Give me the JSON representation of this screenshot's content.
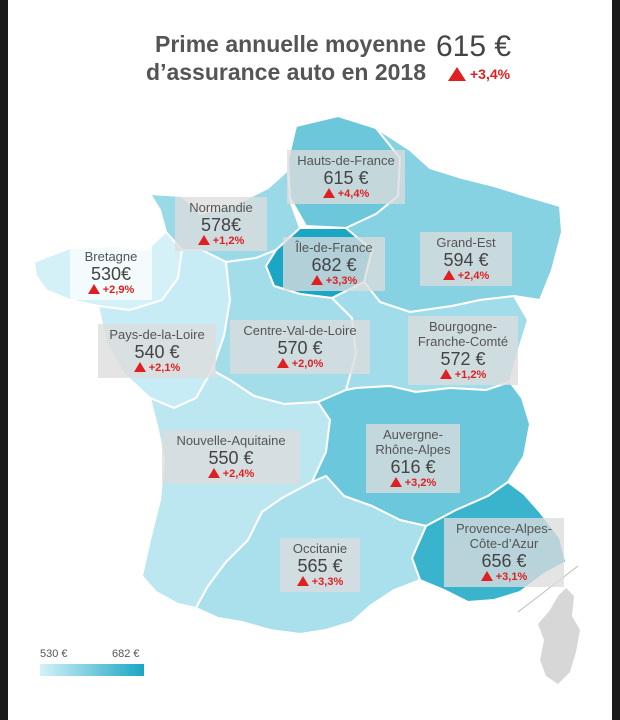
{
  "header": {
    "title_line1": "Prime annuelle moyenne",
    "title_line2": "d’assurance auto en 2018",
    "national_price": "615 €",
    "national_change": "+3,4%"
  },
  "colors": {
    "increase": "#e02020",
    "scale_min": "#d4f1f8",
    "scale_max": "#1aa6c4"
  },
  "regions": [
    {
      "id": "hauts-de-france",
      "name": "Hauts-de-France",
      "price": "615 €",
      "change": "+4,4%",
      "value": 615
    },
    {
      "id": "normandie",
      "name": "Normandie",
      "price": "578€",
      "change": "+1,2%",
      "value": 578
    },
    {
      "id": "ile-de-france",
      "name": "Île-de-France",
      "price": "682 €",
      "change": "+3,3%",
      "value": 682
    },
    {
      "id": "grand-est",
      "name": "Grand-Est",
      "price": "594 €",
      "change": "+2,4%",
      "value": 594
    },
    {
      "id": "bretagne",
      "name": "Bretagne",
      "price": "530€",
      "change": "+2,9%",
      "value": 530
    },
    {
      "id": "pays-de-la-loire",
      "name": "Pays-de-la-Loire",
      "price": "540 €",
      "change": "+2,1%",
      "value": 540
    },
    {
      "id": "centre-val-de-loire",
      "name": "Centre-Val-de-Loire",
      "price": "570 €",
      "change": "+2,0%",
      "value": 570
    },
    {
      "id": "bourgogne-franche-comte",
      "name_line1": "Bourgogne-",
      "name_line2": "Franche-Comté",
      "price": "572 €",
      "change": "+1,2%",
      "value": 572
    },
    {
      "id": "nouvelle-aquitaine",
      "name": "Nouvelle-Aquitaine",
      "price": "550 €",
      "change": "+2,4%",
      "value": 550
    },
    {
      "id": "auvergne-rhone-alpes",
      "name_line1": "Auvergne-",
      "name_line2": "Rhône-Alpes",
      "price": "616 €",
      "change": "+3,2%",
      "value": 616
    },
    {
      "id": "provence-alpes-cote-dazur",
      "name_line1": "Provence-Alpes-",
      "name_line2": "Côte-d’Azur",
      "price": "656 €",
      "change": "+3,1%",
      "value": 656
    },
    {
      "id": "occitanie",
      "name": "Occitanie",
      "price": "565 €",
      "change": "+3,3%",
      "value": 565
    }
  ],
  "legend": {
    "min_label": "530 €",
    "max_label": "682 €",
    "min_value": 530,
    "max_value": 682
  }
}
